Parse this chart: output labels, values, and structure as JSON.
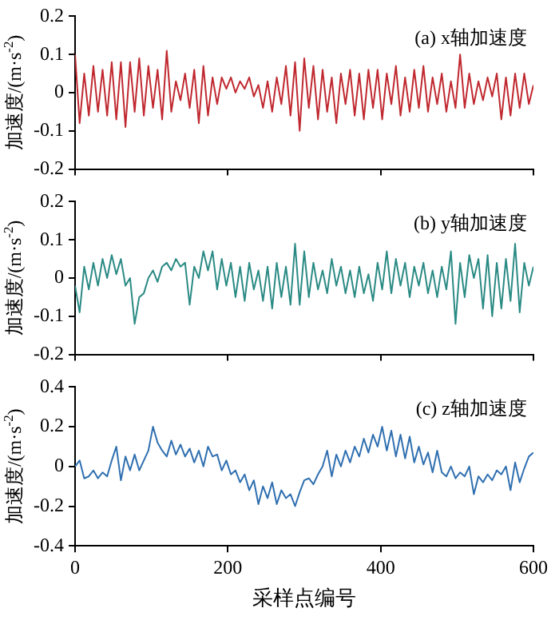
{
  "chart_data": [
    {
      "type": "line",
      "ylabel": "加速度/(m·s$^{-2}$)",
      "annotations": [
        "(a) x轴加速度"
      ],
      "marker": "none",
      "tick_labels": "y",
      "xlim": [
        0,
        600
      ],
      "xticks": [
        0,
        200,
        400,
        600
      ],
      "ylim": [
        -0.2,
        0.2
      ],
      "yticks": [
        -0.2,
        -0.1,
        0,
        0.1,
        0.2
      ],
      "x": [
        0,
        6,
        12,
        18,
        24,
        30,
        36,
        42,
        48,
        54,
        60,
        66,
        72,
        78,
        84,
        90,
        96,
        102,
        108,
        114,
        120,
        126,
        132,
        138,
        144,
        150,
        156,
        162,
        168,
        174,
        180,
        186,
        192,
        198,
        204,
        210,
        216,
        222,
        228,
        234,
        240,
        246,
        252,
        258,
        264,
        270,
        276,
        282,
        288,
        294,
        300,
        306,
        312,
        318,
        324,
        330,
        336,
        342,
        348,
        354,
        360,
        366,
        372,
        378,
        384,
        390,
        396,
        402,
        408,
        414,
        420,
        426,
        432,
        438,
        444,
        450,
        456,
        462,
        468,
        474,
        480,
        486,
        492,
        498,
        504,
        510,
        516,
        522,
        528,
        534,
        540,
        546,
        552,
        558,
        564,
        570,
        576,
        582,
        588,
        594,
        600
      ],
      "series": [
        {
          "color": "#c0282f",
          "values": [
            0.1,
            -0.08,
            0.05,
            -0.06,
            0.07,
            -0.05,
            0.06,
            -0.06,
            0.08,
            -0.07,
            0.08,
            -0.09,
            0.08,
            -0.05,
            0.09,
            -0.06,
            0.07,
            -0.04,
            0.06,
            -0.07,
            0.11,
            -0.05,
            0.03,
            -0.02,
            0.05,
            -0.04,
            0.06,
            -0.08,
            0.07,
            -0.06,
            0.04,
            -0.03,
            0.04,
            0.01,
            0.04,
            0,
            0.03,
            0.01,
            0.04,
            -0.01,
            0.02,
            -0.04,
            0.03,
            -0.05,
            0.04,
            -0.03,
            0.07,
            -0.06,
            0.08,
            -0.1,
            0.09,
            -0.04,
            0.07,
            -0.07,
            0.06,
            -0.05,
            0.04,
            -0.08,
            0.05,
            -0.03,
            0.06,
            -0.06,
            0.05,
            -0.07,
            0.06,
            -0.04,
            0.06,
            -0.07,
            0.05,
            -0.03,
            0.07,
            -0.06,
            0.04,
            -0.05,
            0.06,
            -0.04,
            0.07,
            -0.05,
            0.04,
            -0.03,
            0.05,
            -0.05,
            0.03,
            -0.04,
            0.1,
            -0.04,
            0.05,
            -0.03,
            0.03,
            -0.02,
            0.04,
            -0.01,
            0.05,
            -0.07,
            0.04,
            -0.06,
            0.05,
            -0.04,
            0.05,
            -0.03,
            0.02
          ]
        }
      ]
    },
    {
      "type": "line",
      "ylabel": "加速度/(m·s$^{-2}$)",
      "annotations": [
        "(b) y轴加速度"
      ],
      "marker": "none",
      "tick_labels": "y",
      "xlim": [
        0,
        600
      ],
      "xticks": [
        0,
        200,
        400,
        600
      ],
      "ylim": [
        -0.2,
        0.2
      ],
      "yticks": [
        -0.2,
        -0.1,
        0,
        0.1,
        0.2
      ],
      "x": [
        0,
        6,
        12,
        18,
        24,
        30,
        36,
        42,
        48,
        54,
        60,
        66,
        72,
        78,
        84,
        90,
        96,
        102,
        108,
        114,
        120,
        126,
        132,
        138,
        144,
        150,
        156,
        162,
        168,
        174,
        180,
        186,
        192,
        198,
        204,
        210,
        216,
        222,
        228,
        234,
        240,
        246,
        252,
        258,
        264,
        270,
        276,
        282,
        288,
        294,
        300,
        306,
        312,
        318,
        324,
        330,
        336,
        342,
        348,
        354,
        360,
        366,
        372,
        378,
        384,
        390,
        396,
        402,
        408,
        414,
        420,
        426,
        432,
        438,
        444,
        450,
        456,
        462,
        468,
        474,
        480,
        486,
        492,
        498,
        504,
        510,
        516,
        522,
        528,
        534,
        540,
        546,
        552,
        558,
        564,
        570,
        576,
        582,
        588,
        594,
        600
      ],
      "series": [
        {
          "color": "#2a8a84",
          "values": [
            -0.02,
            -0.09,
            0.03,
            -0.03,
            0.04,
            -0.02,
            0.05,
            0,
            0.06,
            0.01,
            0.05,
            -0.02,
            0,
            -0.12,
            -0.05,
            -0.04,
            0,
            0.02,
            -0.01,
            0.03,
            0.04,
            0.02,
            0.05,
            0.03,
            0.04,
            -0.07,
            0.03,
            0,
            0.07,
            0.02,
            0.07,
            -0.03,
            0.05,
            -0.02,
            0.04,
            -0.05,
            0.03,
            -0.06,
            0.04,
            -0.03,
            0.02,
            -0.06,
            0.03,
            -0.08,
            0.04,
            -0.05,
            0.03,
            -0.07,
            0.09,
            -0.07,
            0.07,
            -0.05,
            0.04,
            -0.03,
            0.02,
            -0.04,
            0.05,
            -0.02,
            0.03,
            -0.04,
            0.02,
            -0.05,
            0.03,
            -0.04,
            0.01,
            -0.06,
            0.04,
            -0.03,
            0.07,
            -0.04,
            0.05,
            -0.02,
            0.04,
            -0.05,
            0.03,
            -0.02,
            0.04,
            -0.04,
            0.02,
            -0.05,
            0.03,
            -0.03,
            0.07,
            -0.12,
            0.04,
            -0.05,
            0.06,
            0,
            0.05,
            -0.08,
            0.06,
            -0.1,
            0.04,
            -0.08,
            0.05,
            -0.06,
            0.09,
            -0.09,
            0.04,
            -0.02,
            0.03
          ]
        }
      ]
    },
    {
      "type": "line",
      "xlabel": "采样点编号",
      "ylabel": "加速度/(m·s$^{-2}$)",
      "annotations": [
        "(c) z轴加速度"
      ],
      "marker": "none",
      "xlim": [
        0,
        600
      ],
      "xticks": [
        0,
        200,
        400,
        600
      ],
      "ylim": [
        -0.4,
        0.4
      ],
      "yticks": [
        -0.4,
        -0.2,
        0,
        0.2,
        0.4
      ],
      "x": [
        0,
        6,
        12,
        18,
        24,
        30,
        36,
        42,
        48,
        54,
        60,
        66,
        72,
        78,
        84,
        90,
        96,
        102,
        108,
        114,
        120,
        126,
        132,
        138,
        144,
        150,
        156,
        162,
        168,
        174,
        180,
        186,
        192,
        198,
        204,
        210,
        216,
        222,
        228,
        234,
        240,
        246,
        252,
        258,
        264,
        270,
        276,
        282,
        288,
        294,
        300,
        306,
        312,
        318,
        324,
        330,
        336,
        342,
        348,
        354,
        360,
        366,
        372,
        378,
        384,
        390,
        396,
        402,
        408,
        414,
        420,
        426,
        432,
        438,
        444,
        450,
        456,
        462,
        468,
        474,
        480,
        486,
        492,
        498,
        504,
        510,
        516,
        522,
        528,
        534,
        540,
        546,
        552,
        558,
        564,
        570,
        576,
        582,
        588,
        594,
        600
      ],
      "series": [
        {
          "color": "#2f6fb0",
          "values": [
            0,
            0.03,
            -0.06,
            -0.05,
            -0.02,
            -0.06,
            -0.03,
            -0.05,
            0.03,
            0.1,
            -0.07,
            0.05,
            -0.02,
            0.06,
            -0.02,
            0.03,
            0.08,
            0.2,
            0.12,
            0.08,
            0.05,
            0.13,
            0.06,
            0.11,
            0.05,
            0.09,
            0.02,
            0.08,
            0,
            0.1,
            0.05,
            0.06,
            -0.02,
            0.03,
            -0.04,
            -0.02,
            -0.08,
            -0.04,
            -0.12,
            -0.07,
            -0.19,
            -0.1,
            -0.16,
            -0.08,
            -0.19,
            -0.12,
            -0.16,
            -0.14,
            -0.2,
            -0.13,
            -0.07,
            -0.06,
            -0.09,
            -0.04,
            0,
            0.08,
            -0.05,
            0.06,
            0,
            0.08,
            0.02,
            0.1,
            0.05,
            0.14,
            0.07,
            0.16,
            0.1,
            0.2,
            0.08,
            0.18,
            0.05,
            0.16,
            0.04,
            0.15,
            0.02,
            0.1,
            0.01,
            0.07,
            -0.03,
            0.08,
            -0.03,
            -0.05,
            0,
            -0.06,
            -0.03,
            -0.05,
            0,
            -0.14,
            -0.05,
            -0.08,
            -0.04,
            -0.07,
            -0.02,
            -0.04,
            0,
            -0.12,
            0.02,
            -0.08,
            -0.01,
            0.05,
            0.07
          ]
        }
      ]
    }
  ]
}
